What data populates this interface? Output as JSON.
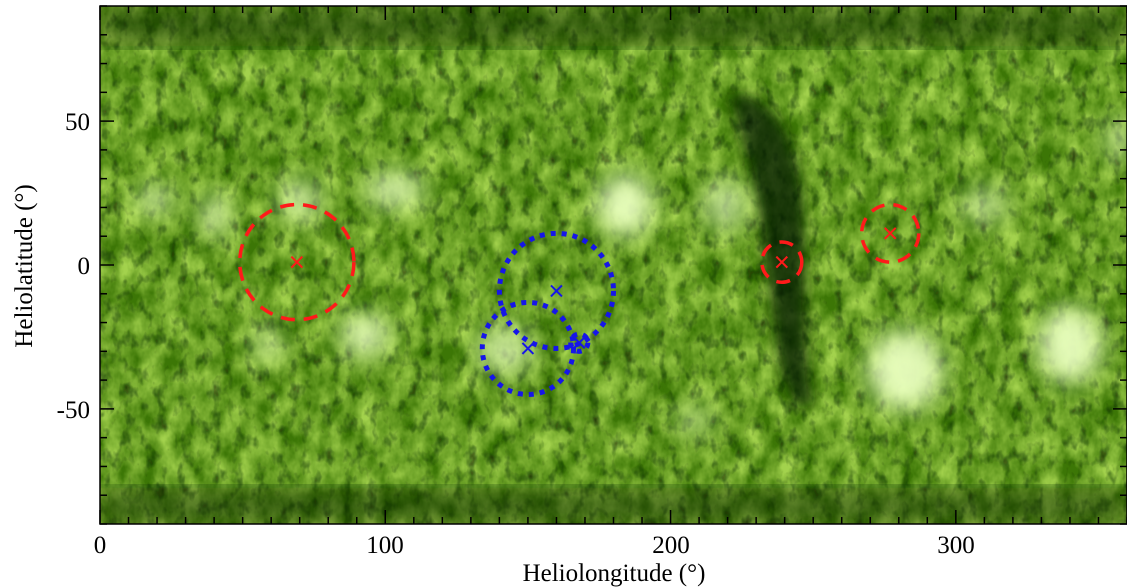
{
  "chart_data": {
    "type": "scatter",
    "title": "",
    "xlabel": "Heliolongitude (°)",
    "ylabel": "Heliolatitude (°)",
    "xlim": [
      0,
      360
    ],
    "ylim": [
      -90,
      90
    ],
    "x_ticks": [
      0,
      100,
      200,
      300
    ],
    "y_ticks": [
      -50,
      0,
      50
    ],
    "x_tick_labels": [
      "0",
      "100",
      "200",
      "300"
    ],
    "y_tick_labels": [
      "-50",
      "0",
      "50"
    ],
    "x_minor_step": 10,
    "y_minor_step": 10,
    "grid": false,
    "legend": "none",
    "background": "EUV synoptic map (green colormap)",
    "colors": {
      "map_dark": "#0e2400",
      "map_mid": "#3f7a06",
      "map_bright": "#c6ec6a",
      "marker_red": "#ff1a1a",
      "marker_blue": "#1616e8"
    },
    "series": [
      {
        "color": "red",
        "marker": "x",
        "circle_style": "dashed",
        "points": [
          {
            "x": 69,
            "y": 1,
            "radius": 20
          },
          {
            "x": 239,
            "y": 1,
            "radius": 7
          },
          {
            "x": 277,
            "y": 11,
            "radius": 10
          }
        ]
      },
      {
        "color": "blue",
        "marker": "x",
        "circle_style": "dotted",
        "points": [
          {
            "x": 160,
            "y": -9,
            "radius": 20
          },
          {
            "x": 150,
            "y": -29,
            "radius": 16
          },
          {
            "x": 168,
            "y": -27,
            "radius": 3
          }
        ]
      }
    ]
  }
}
